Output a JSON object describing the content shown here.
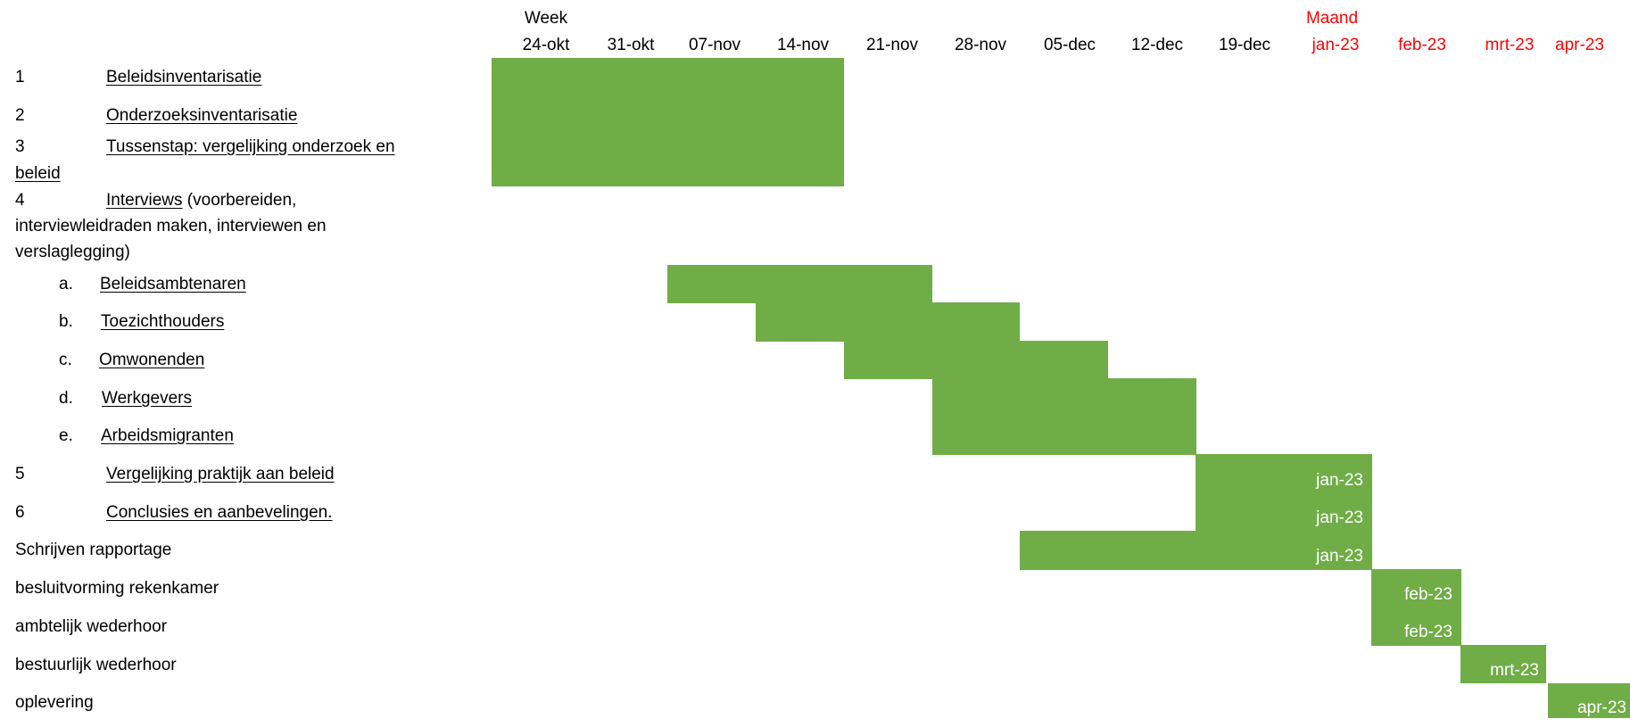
{
  "header": {
    "week_label": "Week",
    "month_label": "Maand",
    "weeks": [
      "24-okt",
      "31-okt",
      "07-nov",
      "14-nov",
      "21-nov",
      "28-nov",
      "05-dec",
      "12-dec",
      "19-dec"
    ],
    "months": [
      "jan-23",
      "feb-23",
      "mrt-23",
      "apr-23"
    ],
    "month_color": "#ff0000"
  },
  "bar_color": "#70ad47",
  "rows": [
    {
      "num": "1",
      "label": "Beleidsinventarisatie"
    },
    {
      "num": "2",
      "label": "Onderzoeksinventarisatie"
    },
    {
      "num": "3",
      "label": "Tussenstap: vergelijking onderzoek en",
      "cont": "beleid"
    },
    {
      "num": "4",
      "label": "Interviews",
      "suffix": " (voorbereiden,",
      "cont": "interviewleidraden maken, interviewen en",
      "cont2": "verslaglegging)"
    },
    {
      "num": "a.",
      "label": "Beleidsambtenaren"
    },
    {
      "num": "b.",
      "label": "Toezichthouders"
    },
    {
      "num": "c.",
      "label": "Omwonenden"
    },
    {
      "num": "d.",
      "label": "Werkgevers"
    },
    {
      "num": "e.",
      "label": "Arbeidsmigranten"
    },
    {
      "num": "5",
      "label": "Vergelijking praktijk aan beleid"
    },
    {
      "num": "6",
      "label": "Conclusies en aanbevelingen."
    },
    {
      "label": "Schrijven rapportage"
    },
    {
      "label": "besluitvorming rekenkamer"
    },
    {
      "label": "ambtelijk wederhoor"
    },
    {
      "label": "bestuurlijk wederhoor"
    },
    {
      "label": "oplevering"
    }
  ],
  "bars": [
    {
      "task": "1-3",
      "start": "24-okt",
      "end": "14-nov"
    },
    {
      "task": "a.",
      "start": "07-nov",
      "end": "21-nov"
    },
    {
      "task": "b.",
      "start": "14-nov",
      "end": "28-nov"
    },
    {
      "task": "c.",
      "start": "21-nov",
      "end": "05-dec"
    },
    {
      "task": "d.",
      "start": "28-nov",
      "end": "12-dec"
    },
    {
      "task": "e.",
      "start": "28-nov",
      "end": "12-dec"
    },
    {
      "task": "5",
      "start": "19-dec",
      "end": "jan-23",
      "label": "jan-23"
    },
    {
      "task": "6",
      "start": "19-dec",
      "end": "jan-23",
      "label": "jan-23"
    },
    {
      "task": "Schrijven rapportage",
      "start": "05-dec",
      "end": "jan-23",
      "label": "jan-23"
    },
    {
      "task": "besluitvorming rekenkamer",
      "start": "feb-23",
      "end": "feb-23",
      "label": "feb-23"
    },
    {
      "task": "ambtelijk wederhoor",
      "start": "feb-23",
      "end": "feb-23",
      "label": "feb-23"
    },
    {
      "task": "bestuurlijk wederhoor",
      "start": "mrt-23",
      "end": "mrt-23",
      "label": "mrt-23"
    },
    {
      "task": "oplevering",
      "start": "apr-23",
      "end": "apr-23",
      "label": "apr-23"
    }
  ]
}
